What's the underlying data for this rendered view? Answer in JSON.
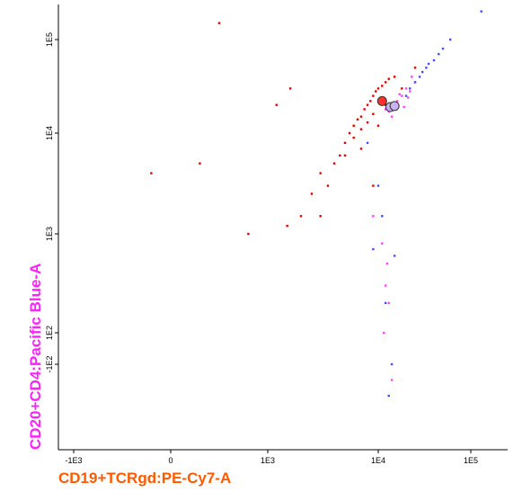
{
  "chart_data": {
    "type": "scatter",
    "xlabel": "CD19+TCRgd:PE-Cy7-A",
    "ylabel": "CD20+CD4:Pacific Blue-A",
    "xlim": [
      -1200,
      250000
    ],
    "ylim": [
      -650,
      240000
    ],
    "xticks": [
      {
        "value": -1000,
        "label": "-1E3"
      },
      0,
      {
        "value": 1000,
        "label": "1E3"
      },
      {
        "value": 10000,
        "label": "1E4"
      },
      {
        "value": 100000,
        "label": "1E5"
      }
    ],
    "yticks": [
      {
        "value": -100,
        "label": "-1E2"
      },
      {
        "value": 100,
        "label": "1E2"
      },
      {
        "value": 1000,
        "label": "1E3"
      },
      {
        "value": 10000,
        "label": "1E4"
      },
      {
        "value": 100000,
        "label": "1E5"
      }
    ],
    "xlabel_color": "#ff5a00",
    "ylabel_color": "#ff22ff",
    "series": [
      {
        "color": "#e00000",
        "marker": "dot",
        "x": [
          3000,
          5000,
          6000,
          7000,
          8000,
          9000,
          10000,
          12000,
          15000,
          4000,
          5500,
          6500,
          7500,
          8500,
          9500,
          11000,
          13000,
          6000,
          7000,
          8000,
          9000,
          10000,
          4500,
          3500,
          2500,
          2000,
          1500,
          5000,
          7000,
          12000,
          18000,
          25000,
          800,
          500,
          1200,
          300,
          -200,
          1600,
          3000,
          9000
        ],
        "values": [
          4000,
          8000,
          12000,
          15000,
          20000,
          25000,
          30000,
          35000,
          40000,
          5000,
          10000,
          14000,
          18000,
          22000,
          28000,
          32000,
          38000,
          9000,
          11000,
          13000,
          16000,
          12000,
          6000,
          3000,
          2500,
          1500,
          1200,
          6000,
          7000,
          20000,
          30000,
          50000,
          1000,
          150000,
          20000,
          5000,
          4000,
          30000,
          1500,
          3000
        ]
      },
      {
        "color": "#ff44ff",
        "marker": "dot",
        "x": [
          12000,
          15000,
          18000,
          20000,
          22000,
          25000,
          14000,
          16000,
          19000,
          23000,
          17000,
          21000,
          13000,
          11000,
          12500,
          12000,
          13000,
          11500,
          14000,
          9000
        ],
        "values": [
          18000,
          20000,
          25000,
          30000,
          28000,
          35000,
          15000,
          22000,
          19000,
          40000,
          26000,
          24000,
          17000,
          800,
          500,
          300,
          200,
          100,
          -200,
          1500
        ]
      },
      {
        "color": "#4a4aff",
        "marker": "dot",
        "x": [
          20000,
          25000,
          30000,
          35000,
          40000,
          45000,
          50000,
          22000,
          28000,
          33000,
          60000,
          130000,
          10000,
          11000,
          12000,
          13000,
          9000,
          14000,
          15000,
          8000
        ],
        "values": [
          25000,
          35000,
          45000,
          55000,
          60000,
          70000,
          80000,
          30000,
          40000,
          50000,
          100000,
          200000,
          3000,
          1500,
          200,
          -300,
          700,
          -100,
          600,
          8000
        ]
      },
      {
        "color": "#c8b4f0",
        "marker": "circle",
        "x": [
          13500,
          15000
        ],
        "values": [
          19000,
          19500
        ]
      },
      {
        "color": "#ff3030",
        "marker": "circle",
        "x": [
          11000
        ],
        "values": [
          22000
        ]
      }
    ]
  }
}
